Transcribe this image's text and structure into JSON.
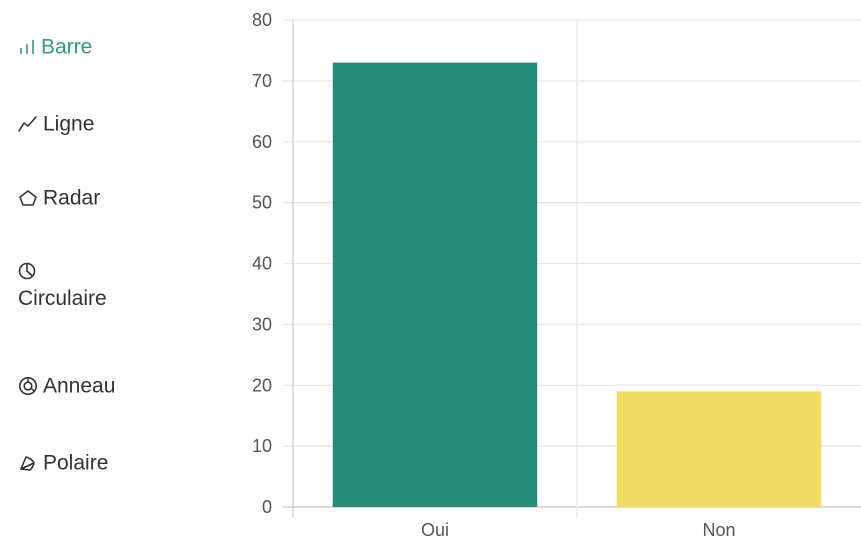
{
  "menu": {
    "active_color": "#3a9a74",
    "items": [
      {
        "label": "Barre",
        "icon": "bar-chart-icon",
        "active": true
      },
      {
        "label": "Ligne",
        "icon": "line-chart-icon",
        "active": false
      },
      {
        "label": "Radar",
        "icon": "radar-chart-icon",
        "active": false
      },
      {
        "label": "Circulaire",
        "icon": "pie-chart-icon",
        "active": false
      },
      {
        "label": "Anneau",
        "icon": "doughnut-chart-icon",
        "active": false
      },
      {
        "label": "Polaire",
        "icon": "polar-area-chart-icon",
        "active": false
      }
    ]
  },
  "chart_data": {
    "type": "bar",
    "categories": [
      "Oui",
      "Non"
    ],
    "values": [
      73,
      19
    ],
    "colors": [
      "#258c77",
      "#f0dc64"
    ],
    "ylim": [
      0,
      80
    ],
    "yticks": [
      0,
      10,
      20,
      30,
      40,
      50,
      60,
      70,
      80
    ],
    "grid": true,
    "legend": "none"
  }
}
